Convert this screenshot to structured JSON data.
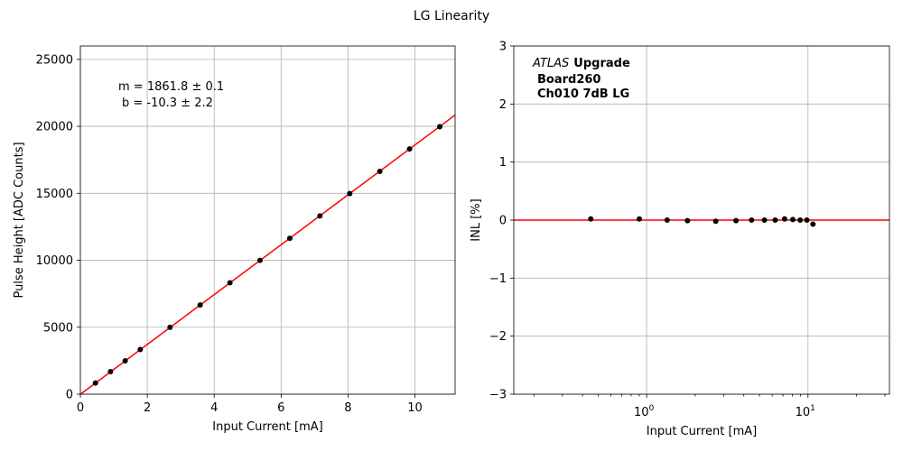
{
  "figure": {
    "title": "LG Linearity"
  },
  "colors": {
    "fit_line": "#ff0000",
    "points": "#000000",
    "grid": "#b0b0b0"
  },
  "chart_data": [
    {
      "type": "scatter",
      "xlabel": "Input Current [mA]",
      "ylabel": "Pulse Height [ADC Counts]",
      "xlim": [
        0,
        11.2
      ],
      "ylim": [
        0,
        26000
      ],
      "xticks": [
        0,
        2,
        4,
        6,
        8,
        10
      ],
      "yticks": [
        0,
        5000,
        10000,
        15000,
        20000,
        25000
      ],
      "grid": true,
      "fit": {
        "slope": 1861.8,
        "intercept": -10.3
      },
      "annotation": {
        "line1": "m = 1861.8 ± 0.1",
        "line2": "b = -10.3 ± 2.2"
      },
      "series": [
        {
          "x": [
            0.45,
            0.9,
            1.34,
            1.79,
            2.68,
            3.58,
            4.47,
            5.37,
            6.26,
            7.16,
            8.05,
            8.95,
            9.84,
            10.74
          ],
          "y": [
            830,
            1680,
            2490,
            3330,
            4990,
            6660,
            8320,
            9990,
            11640,
            13310,
            14980,
            16640,
            18310,
            19970
          ]
        }
      ]
    },
    {
      "type": "scatter",
      "xlabel": "Input Current [mA]",
      "ylabel": "INL [%]",
      "xscale": "log",
      "xlim": [
        0.15,
        32
      ],
      "ylim": [
        -3,
        3
      ],
      "xticks": [
        1,
        10
      ],
      "xticklabels": [
        {
          "base": "10",
          "exp": "0"
        },
        {
          "base": "10",
          "exp": "1"
        }
      ],
      "yticks": [
        -3,
        -2,
        -1,
        0,
        1,
        2,
        3
      ],
      "yticklabels": [
        "−3",
        "−2",
        "−1",
        "0",
        "1",
        "2",
        "3"
      ],
      "grid": true,
      "reference_line": 0,
      "annotation": {
        "experiment": "ATLAS",
        "upgrade": "Upgrade",
        "board": "Board260",
        "channel": "Ch010 7dB LG"
      },
      "series": [
        {
          "x": [
            0.45,
            0.9,
            1.34,
            1.79,
            2.68,
            3.58,
            4.47,
            5.37,
            6.26,
            7.16,
            8.05,
            8.95,
            9.84,
            10.74
          ],
          "y": [
            0.02,
            0.02,
            0.0,
            -0.01,
            -0.02,
            -0.01,
            0.0,
            0.0,
            0.0,
            0.02,
            0.01,
            0.0,
            0.0,
            -0.07
          ]
        }
      ]
    }
  ]
}
